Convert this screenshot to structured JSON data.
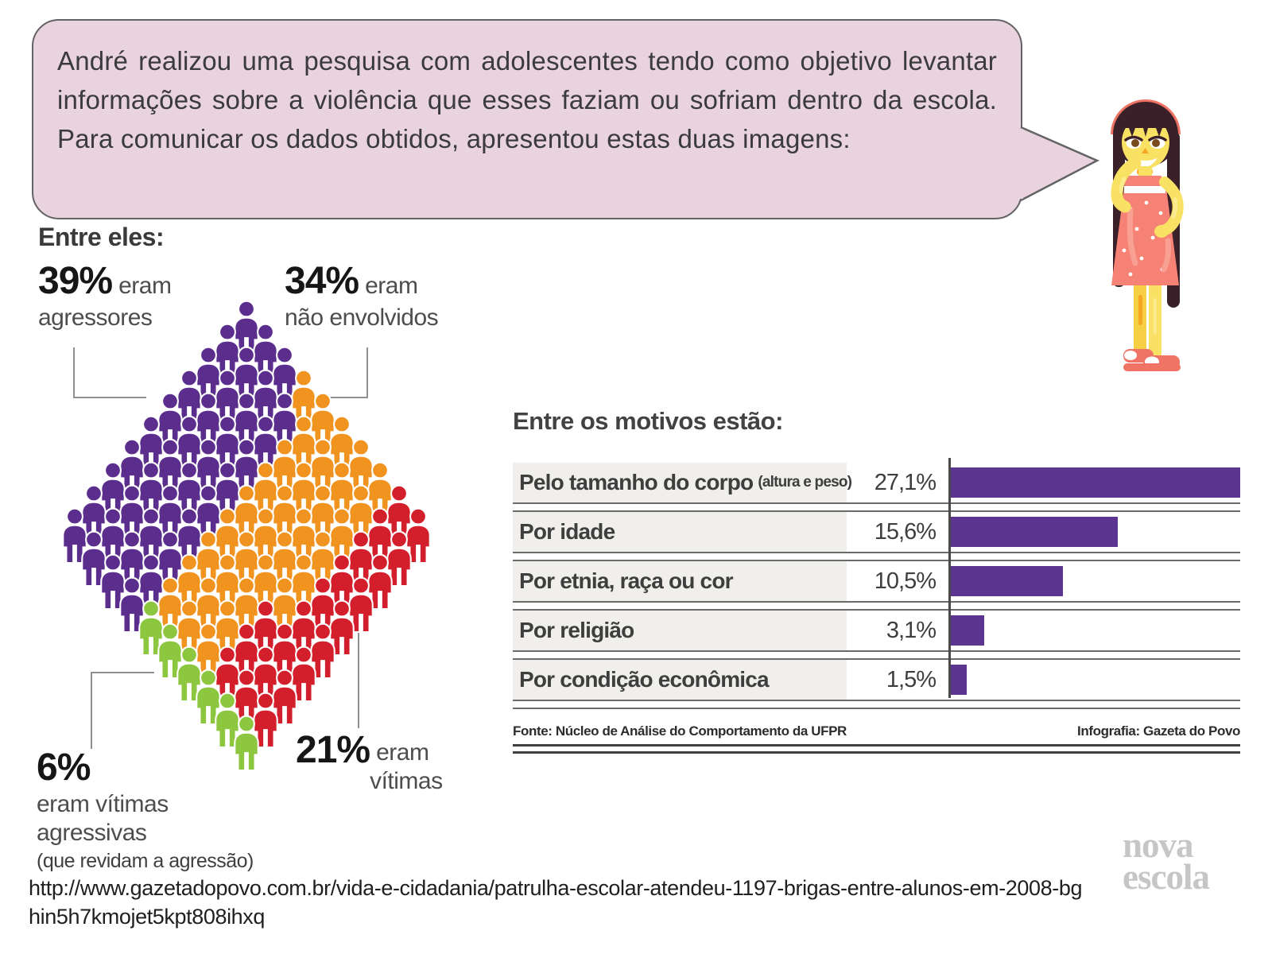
{
  "bubble": {
    "text": "André realizou uma pesquisa com adolescentes tendo como objetivo levantar informações sobre a violência que esses faziam ou sofriam dentro da escola. Para comunicar os dados obtidos, apresentou estas duas imagens:"
  },
  "pictograph": {
    "heading": "Entre eles:",
    "labels": {
      "agressores": {
        "pct": "39%",
        "word": "eram",
        "name": "agressores"
      },
      "nao_envolvidos": {
        "pct": "34%",
        "word": "eram",
        "name": "não envolvidos"
      },
      "vitimas": {
        "pct": "21%",
        "word": "eram",
        "name": "vítimas"
      },
      "vitimas_agressivas": {
        "pct": "6%",
        "line1": "eram vítimas",
        "line2": "agressivas",
        "note": "(que revidam a agressão)"
      }
    },
    "colors": {
      "agressores": "#5b2d8d",
      "nao_envolvidos": "#f0931f",
      "vitimas": "#d31f2c",
      "vitimas_agressivas": "#8dc63f"
    },
    "counts": {
      "agressores": 39,
      "nao_envolvidos": 34,
      "vitimas": 21,
      "vitimas_agressivas": 6
    }
  },
  "chart": {
    "title": "Entre os motivos estão:",
    "rows": [
      {
        "label": "Pelo tamanho do corpo",
        "label_small": "(altura e peso)",
        "value": "27,1%",
        "pct": 27.1
      },
      {
        "label": "Por idade",
        "label_small": "",
        "value": "15,6%",
        "pct": 15.6
      },
      {
        "label": "Por etnia, raça ou cor",
        "label_small": "",
        "value": "10,5%",
        "pct": 10.5
      },
      {
        "label": "Por religião",
        "label_small": "",
        "value": "3,1%",
        "pct": 3.1
      },
      {
        "label": "Por condição econômica",
        "label_small": "",
        "value": "1,5%",
        "pct": 1.5
      }
    ],
    "max_pct": 27.1,
    "bar_color": "#5b3590",
    "label_bg": "#f1efec",
    "source": "Fonte: Núcleo de Análise do Comportamento da UFPR",
    "credit": "Infografia: Gazeta do Povo"
  },
  "chart_data": [
    {
      "type": "pictograph",
      "title": "Entre eles:",
      "layout": "10x10 diamond grid of 100 person icons, 1 icon = 1%",
      "categories": [
        "eram agressores",
        "eram não envolvidos",
        "eram vítimas",
        "eram vítimas agressivas (que revidam a agressão)"
      ],
      "values": [
        39,
        34,
        21,
        6
      ],
      "colors": [
        "#5b2d8d",
        "#f0931f",
        "#d31f2c",
        "#8dc63f"
      ],
      "total": 100
    },
    {
      "type": "bar",
      "orientation": "horizontal",
      "title": "Entre os motivos estão:",
      "categories": [
        "Pelo tamanho do corpo (altura e peso)",
        "Por idade",
        "Por etnia, raça ou cor",
        "Por religião",
        "Por condição econômica"
      ],
      "values": [
        27.1,
        15.6,
        10.5,
        3.1,
        1.5
      ],
      "value_labels": [
        "27,1%",
        "15,6%",
        "10,5%",
        "3,1%",
        "1,5%"
      ],
      "xlim": [
        0,
        27.1
      ],
      "bar_color": "#5b3590",
      "grid": false,
      "legend": false,
      "source": "Fonte: Núcleo de Análise do Comportamento da UFPR",
      "credit": "Infografia: Gazeta do Povo"
    }
  ],
  "footer": {
    "url_line1": "http://www.gazetadopovo.com.br/vida-e-cidadania/patrulha-escolar-atendeu-1197-brigas-entre-alunos-em-2008-bg",
    "url_line2": "hin5h7kmojet5kpt808ihxq",
    "logo_line1": "nova",
    "logo_line2": "escola"
  }
}
